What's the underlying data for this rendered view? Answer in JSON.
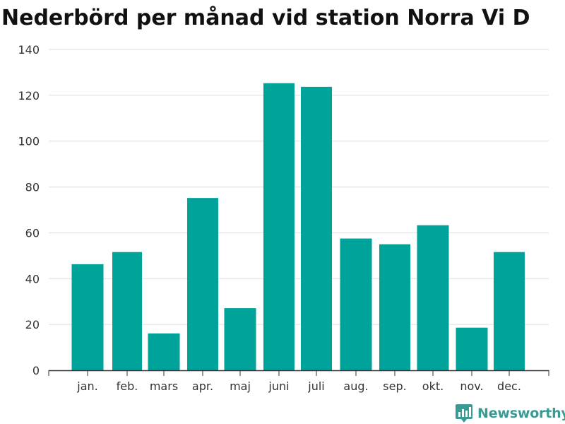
{
  "title": "Nederbörd per månad vid station Norra Vi D",
  "brand": {
    "name": "Newsworthy",
    "color": "#3a9b94"
  },
  "colors": {
    "bar": "#00a39a",
    "grid": "#dddddd",
    "axis": "#333333"
  },
  "chart_data": {
    "type": "bar",
    "title": "Nederbörd per månad vid station Norra Vi D",
    "xlabel": "",
    "ylabel": "",
    "categories": [
      "jan.",
      "feb.",
      "mars",
      "apr.",
      "maj",
      "juni",
      "juli",
      "aug.",
      "sep.",
      "okt.",
      "nov.",
      "dec."
    ],
    "values": [
      46.3,
      51.6,
      16.1,
      75.2,
      27.1,
      125.3,
      123.7,
      57.5,
      55.0,
      63.3,
      18.6,
      51.6
    ],
    "yticks": [
      0,
      20,
      40,
      60,
      80,
      100,
      120,
      140
    ],
    "ylim": [
      0,
      140
    ],
    "grid": true,
    "legend": "none"
  }
}
